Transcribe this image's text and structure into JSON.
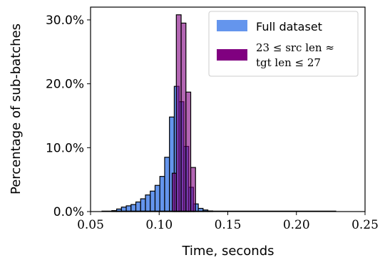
{
  "chart_data": {
    "type": "histogram",
    "xlabel": "Time, seconds",
    "ylabel": "Percentage of sub-batches",
    "xlim": [
      0.05,
      0.25
    ],
    "ylim": [
      0,
      32
    ],
    "x_ticks": [
      "0.05",
      "0.10",
      "0.15",
      "0.20",
      "0.25"
    ],
    "x_tick_values": [
      0.05,
      0.1,
      0.15,
      0.2,
      0.25
    ],
    "y_ticks": [
      "0.0%",
      "10.0%",
      "20.0%",
      "30.0%"
    ],
    "y_tick_values": [
      0,
      10,
      20,
      30
    ],
    "grid": false,
    "legend_position": "top-right",
    "series": [
      {
        "name": "Full dataset",
        "color": "#6495ed",
        "opacity": 1.0,
        "bins": [
          {
            "x0": 0.0655,
            "x1": 0.069,
            "y": 0.15
          },
          {
            "x0": 0.069,
            "x1": 0.0725,
            "y": 0.4
          },
          {
            "x0": 0.0725,
            "x1": 0.076,
            "y": 0.7
          },
          {
            "x0": 0.076,
            "x1": 0.0795,
            "y": 0.9
          },
          {
            "x0": 0.0795,
            "x1": 0.083,
            "y": 1.1
          },
          {
            "x0": 0.083,
            "x1": 0.0865,
            "y": 1.5
          },
          {
            "x0": 0.0865,
            "x1": 0.09,
            "y": 2.0
          },
          {
            "x0": 0.09,
            "x1": 0.0935,
            "y": 2.6
          },
          {
            "x0": 0.0935,
            "x1": 0.097,
            "y": 3.2
          },
          {
            "x0": 0.097,
            "x1": 0.1005,
            "y": 4.1
          },
          {
            "x0": 0.1005,
            "x1": 0.104,
            "y": 5.5
          },
          {
            "x0": 0.104,
            "x1": 0.1075,
            "y": 8.5
          },
          {
            "x0": 0.1075,
            "x1": 0.111,
            "y": 14.8
          },
          {
            "x0": 0.111,
            "x1": 0.1145,
            "y": 19.6
          },
          {
            "x0": 0.1145,
            "x1": 0.118,
            "y": 17.2
          },
          {
            "x0": 0.118,
            "x1": 0.1215,
            "y": 10.2
          },
          {
            "x0": 0.1215,
            "x1": 0.125,
            "y": 3.8
          },
          {
            "x0": 0.125,
            "x1": 0.1285,
            "y": 1.2
          },
          {
            "x0": 0.1285,
            "x1": 0.132,
            "y": 0.5
          },
          {
            "x0": 0.132,
            "x1": 0.1355,
            "y": 0.25
          },
          {
            "x0": 0.1355,
            "x1": 0.139,
            "y": 0.1
          }
        ],
        "baseline_span": [
          0.058,
          0.229
        ]
      },
      {
        "name": "23 ≤ src len ≈ tgt len ≤ 27",
        "color": "#800080",
        "opacity": 0.6,
        "bins": [
          {
            "x0": 0.1095,
            "x1": 0.1125,
            "y": 6.0
          },
          {
            "x0": 0.1125,
            "x1": 0.116,
            "y": 30.8
          },
          {
            "x0": 0.116,
            "x1": 0.1195,
            "y": 29.5
          },
          {
            "x0": 0.1195,
            "x1": 0.123,
            "y": 18.7
          },
          {
            "x0": 0.123,
            "x1": 0.1265,
            "y": 6.9
          }
        ]
      }
    ],
    "legend": {
      "entries": [
        {
          "label": "Full dataset"
        },
        {
          "label_line1": "23 ≤ src len ≈",
          "label_line2": "tgt len ≤ 27"
        }
      ]
    }
  }
}
